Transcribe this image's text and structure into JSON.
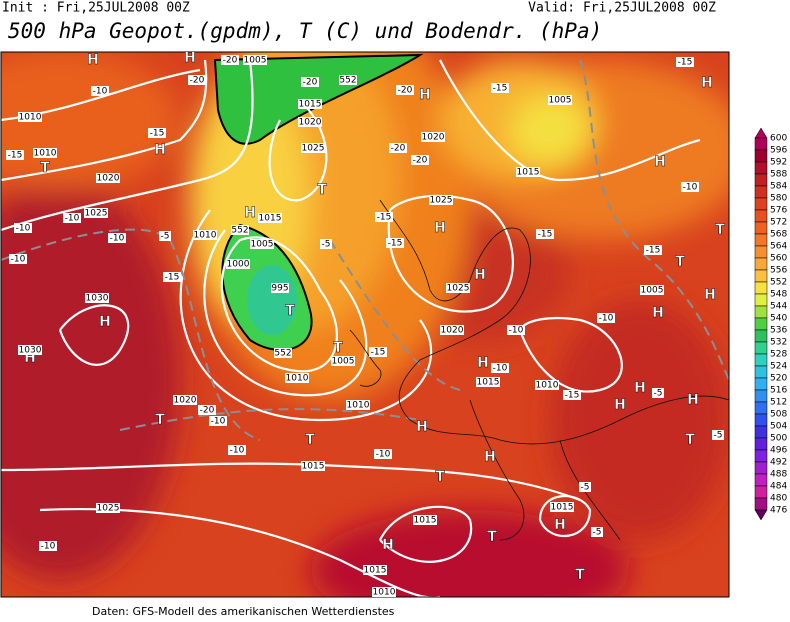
{
  "header": {
    "init": "Init : Fri,25JUL2008 00Z",
    "valid": "Valid: Fri,25JUL2008 00Z",
    "title": "500 hPa Geopot.(gpdm), T (C) und Bodendr. (hPa)"
  },
  "footer": "Daten: GFS-Modell des amerikanischen Wetterdienstes",
  "colorbar": {
    "levels": [
      600,
      596,
      592,
      588,
      584,
      580,
      576,
      572,
      568,
      564,
      560,
      556,
      552,
      548,
      544,
      540,
      536,
      532,
      528,
      524,
      520,
      516,
      512,
      508,
      504,
      500,
      496,
      492,
      488,
      484,
      480,
      476
    ],
    "colors": [
      "#b0005a",
      "#a00030",
      "#b0102a",
      "#c02020",
      "#d03020",
      "#e04020",
      "#e85020",
      "#f06020",
      "#f07828",
      "#f59030",
      "#f8a838",
      "#fac040",
      "#f8e040",
      "#e0f040",
      "#a0e040",
      "#50d040",
      "#30c060",
      "#30d090",
      "#30d0c0",
      "#30c0e0",
      "#30b0f0",
      "#3090f0",
      "#3070f0",
      "#3050f0",
      "#4030e0",
      "#6020e0",
      "#8020e0",
      "#a020d0",
      "#c020c0",
      "#d020a0",
      "#a01080",
      "#600060"
    ]
  },
  "map_labels": [
    "H",
    "H",
    "H",
    "H",
    "H",
    "H",
    "H",
    "H",
    "H",
    "H",
    "H",
    "H",
    "H",
    "H",
    "H",
    "H",
    "H",
    "H",
    "H",
    "H",
    "H",
    "T",
    "T",
    "T",
    "T",
    "T",
    "T",
    "T",
    "T",
    "T",
    "T",
    "T",
    "T",
    "1010",
    "1010",
    "1010",
    "1010",
    "1010",
    "1010",
    "1010",
    "1015",
    "1015",
    "1015",
    "1015",
    "1015",
    "1015",
    "1015",
    "1015",
    "1020",
    "1020",
    "1020",
    "1020",
    "1020",
    "1025",
    "1025",
    "1025",
    "1025",
    "1025",
    "1030",
    "1030",
    "1005",
    "1005",
    "1005",
    "1005",
    "1005",
    "1000",
    "995",
    "-10",
    "-10",
    "-10",
    "-10",
    "-10",
    "-10",
    "-10",
    "-10",
    "-10",
    "-10",
    "-10",
    "-10",
    "-10",
    "-15",
    "-15",
    "-15",
    "-15",
    "-15",
    "-15",
    "-15",
    "-15",
    "-15",
    "-15",
    "-15",
    "-20",
    "-20",
    "-20",
    "-20",
    "-20",
    "-20",
    "-20",
    "-5",
    "-5",
    "-5",
    "-5",
    "-5",
    "-5",
    "552",
    "552",
    "552"
  ]
}
